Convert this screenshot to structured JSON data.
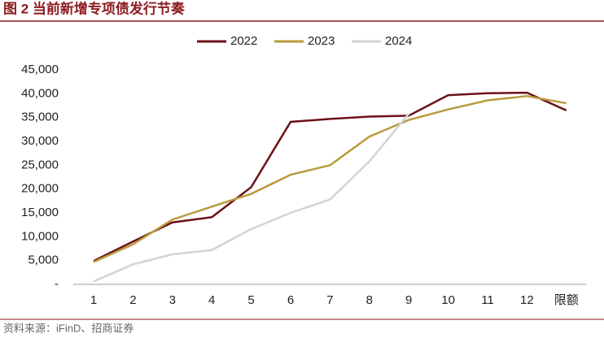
{
  "chart_data": {
    "type": "line",
    "title": "图 2 当前新增专项债发行节奏",
    "source": "资料来源：iFinD、招商证券",
    "categories": [
      "1",
      "2",
      "3",
      "4",
      "5",
      "6",
      "7",
      "8",
      "9",
      "10",
      "11",
      "12",
      "限额"
    ],
    "series": [
      {
        "name": "2022",
        "color": "#6b1219",
        "values": [
          4900,
          9000,
          13000,
          14100,
          20400,
          34100,
          34700,
          35200,
          35400,
          39700,
          40100,
          40200,
          36500
        ]
      },
      {
        "name": "2023",
        "color": "#b99b3e",
        "values": [
          4700,
          8400,
          13600,
          16300,
          19000,
          23000,
          25000,
          31000,
          34500,
          36700,
          38600,
          39500,
          38000
        ]
      },
      {
        "name": "2024",
        "color": "#d3d3d3",
        "values": [
          600,
          4200,
          6300,
          7200,
          11600,
          15000,
          17800,
          25800,
          35800,
          null,
          null,
          null,
          null
        ]
      }
    ],
    "ylim": [
      0,
      45000
    ],
    "yticks": [
      {
        "value": 0,
        "label": "-"
      },
      {
        "value": 5000,
        "label": "5,000"
      },
      {
        "value": 10000,
        "label": "10,000"
      },
      {
        "value": 15000,
        "label": "15,000"
      },
      {
        "value": 20000,
        "label": "20,000"
      },
      {
        "value": 25000,
        "label": "25,000"
      },
      {
        "value": 30000,
        "label": "30,000"
      },
      {
        "value": 35000,
        "label": "35,000"
      },
      {
        "value": 40000,
        "label": "40,000"
      },
      {
        "value": 45000,
        "label": "45,000"
      }
    ],
    "legend": "top"
  }
}
